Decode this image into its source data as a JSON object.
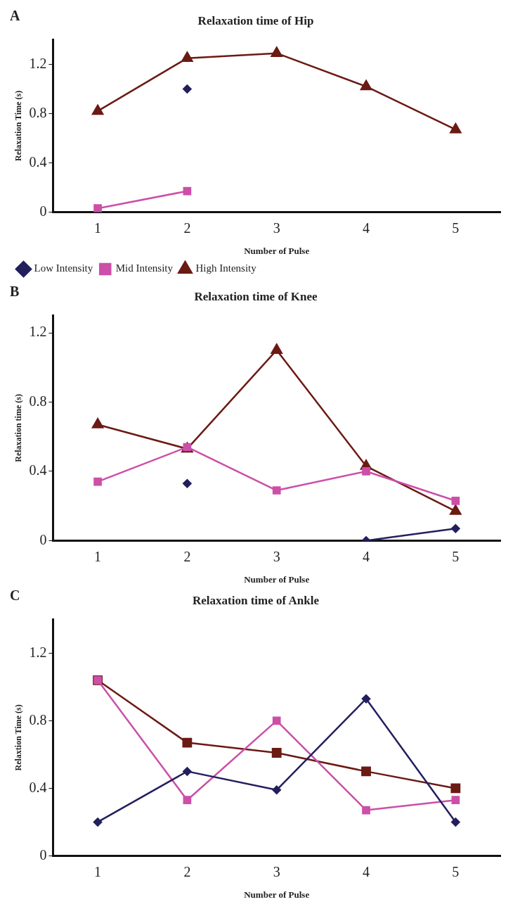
{
  "chart_data": [
    {
      "type": "line",
      "title": "Relaxation time of Hip",
      "annotations": [
        "A"
      ],
      "xlabel": "Number of Pulse",
      "ylabel": "Relaxation Time (s)",
      "categories": [
        "1",
        "2",
        "3",
        "4",
        "5"
      ],
      "ylim": [
        0,
        1.4
      ],
      "yticks": [
        0,
        0.4,
        0.8,
        1.2
      ],
      "legend": "bottom left",
      "series": [
        {
          "name": "Low Intensity",
          "color": "#231f5e",
          "marker": "diamond",
          "values": [
            null,
            1.0,
            null,
            null,
            null
          ]
        },
        {
          "name": "Mid Intensity",
          "color": "#cc4fa8",
          "marker": "square",
          "values": [
            0.03,
            0.17,
            null,
            null,
            null
          ]
        },
        {
          "name": "High Intensity",
          "color": "#6b1a14",
          "marker": "triangle",
          "values": [
            0.82,
            1.25,
            1.29,
            1.02,
            0.67
          ]
        }
      ]
    },
    {
      "type": "line",
      "title": "Relaxation time of Knee",
      "annotations": [
        "B"
      ],
      "xlabel": "Number of Pulse",
      "ylabel": "Relaxation time (s)",
      "categories": [
        "1",
        "2",
        "3",
        "4",
        "5"
      ],
      "ylim": [
        0,
        1.3
      ],
      "yticks": [
        0,
        0.4,
        0.8,
        1.2
      ],
      "series": [
        {
          "color": "#231f5e",
          "marker": "diamond",
          "values": [
            null,
            0.33,
            null,
            0.0,
            0.07
          ]
        },
        {
          "color": "#cc4fa8",
          "marker": "square",
          "values": [
            0.34,
            0.54,
            0.29,
            0.4,
            0.23
          ]
        },
        {
          "color": "#6b1a14",
          "marker": "triangle",
          "values": [
            0.67,
            0.53,
            1.1,
            0.43,
            0.17
          ]
        }
      ]
    },
    {
      "type": "line",
      "title": "Relaxation time of Ankle",
      "annotations": [
        "C"
      ],
      "xlabel": "Number of Pulse",
      "ylabel": "Relaxtion Time (s)",
      "categories": [
        "1",
        "2",
        "3",
        "4",
        "5"
      ],
      "ylim": [
        0,
        1.4
      ],
      "yticks": [
        0,
        0.4,
        0.8,
        1.2
      ],
      "series": [
        {
          "color": "#231f5e",
          "marker": "diamond",
          "values": [
            0.2,
            0.5,
            0.39,
            0.93,
            0.2
          ]
        },
        {
          "color": "#cc4fa8",
          "marker": "square",
          "values": [
            1.04,
            0.33,
            0.8,
            0.27,
            0.33
          ]
        },
        {
          "color": "#6b1a14",
          "marker": "square",
          "values": [
            1.04,
            0.67,
            0.61,
            0.5,
            0.4
          ]
        }
      ]
    }
  ]
}
